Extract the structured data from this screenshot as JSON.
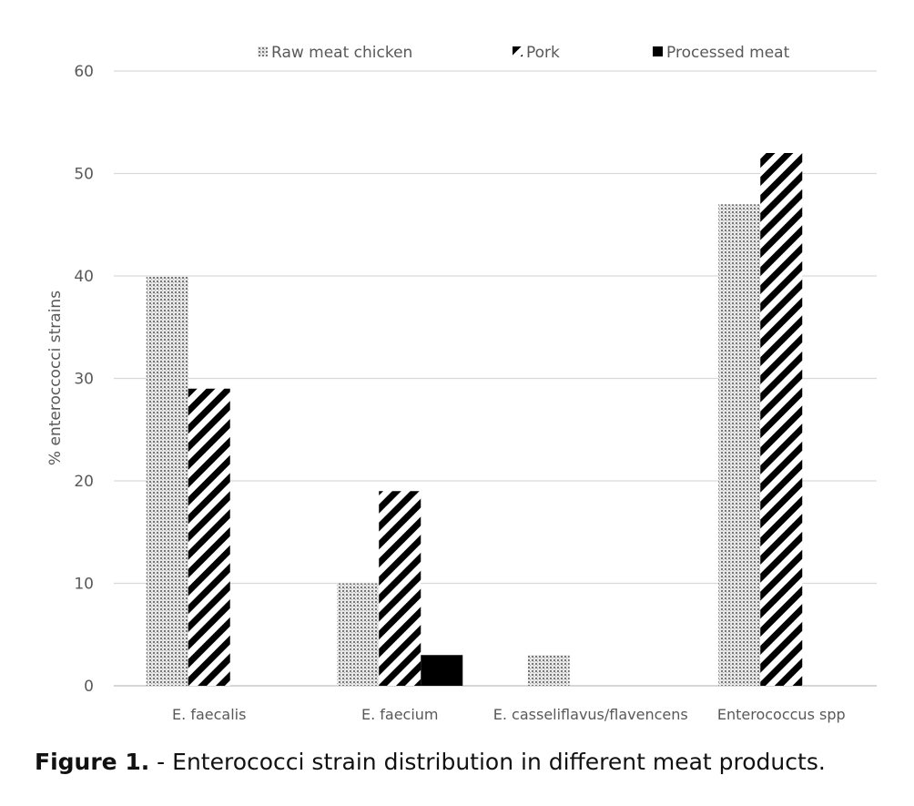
{
  "chart_data": {
    "type": "bar",
    "title": "",
    "xlabel": "",
    "ylabel": "% enteroccocci strains",
    "ylim": [
      0,
      60
    ],
    "yticks": [
      0,
      10,
      20,
      30,
      40,
      50,
      60
    ],
    "grid": true,
    "legend_position": "top",
    "categories": [
      "E. faecalis",
      "E. faecium",
      "E. casseliflavus/flavencens",
      "Enterococcus spp"
    ],
    "series": [
      {
        "name": "Raw meat chicken",
        "pattern": "dots",
        "values": [
          40,
          10,
          3,
          47
        ]
      },
      {
        "name": "Pork",
        "pattern": "diagonal-stripes",
        "values": [
          29,
          19,
          0,
          52
        ]
      },
      {
        "name": "Processed meat",
        "pattern": "solid",
        "values": [
          0,
          3,
          0,
          0
        ]
      }
    ]
  },
  "caption": {
    "label": "Figure 1.",
    "text": " - Enterococci strain distribution in different meat products."
  }
}
